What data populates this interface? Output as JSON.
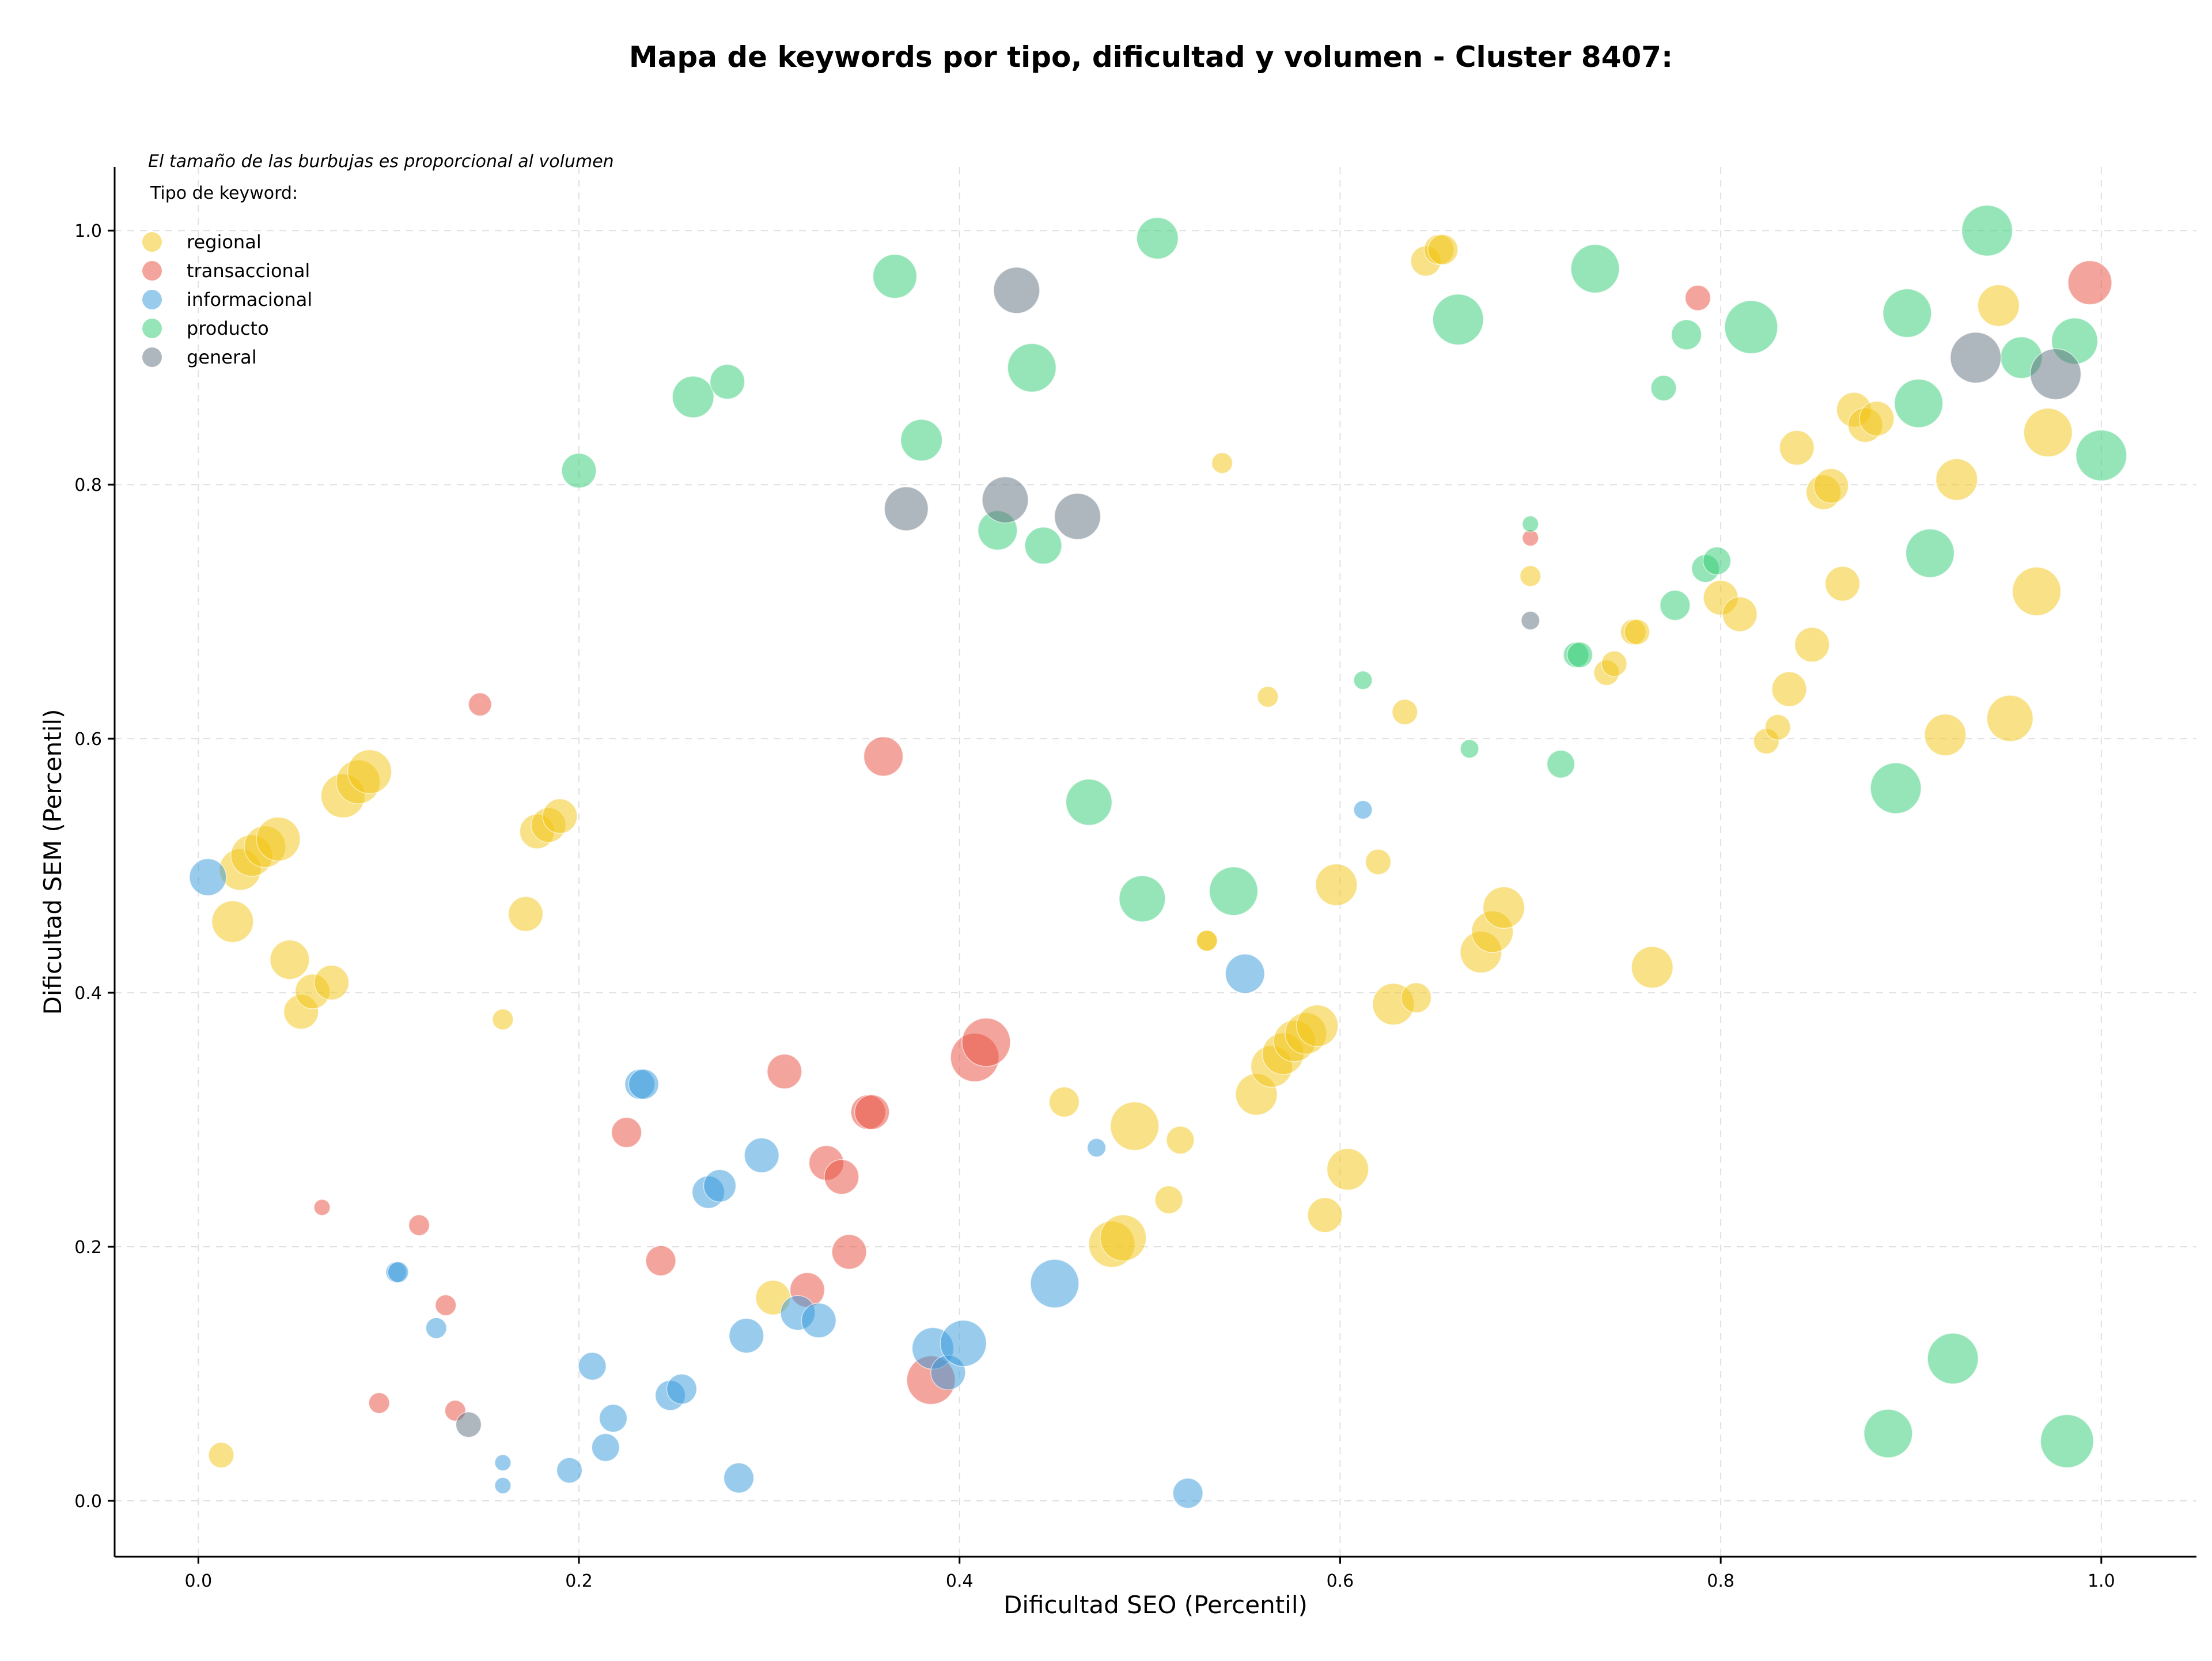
{
  "chart_data": {
    "type": "scatter",
    "title": "Mapa de keywords por tipo, dificultad y volumen - Cluster 8407:",
    "xlabel": "Dificultad SEO (Percentil)",
    "ylabel": "Dificultad SEM (Percentil)",
    "note": "El tamaño de las burbujas es proporcional al volumen",
    "legend_title": "Tipo de keyword:",
    "legend_position": "top-left",
    "grid": true,
    "xlim": [
      -0.044,
      1.05
    ],
    "ylim": [
      -0.044,
      1.05
    ],
    "xticks": [
      "0.0",
      "0.2",
      "0.4",
      "0.6",
      "0.8",
      "1.0"
    ],
    "yticks": [
      "0.0",
      "0.2",
      "0.4",
      "0.6",
      "0.8",
      "1.0"
    ],
    "series": [
      {
        "name": "regional",
        "color": "#f1c40f",
        "points": [
          [
            0.012,
            0.036,
            22
          ],
          [
            0.018,
            0.456,
            36
          ],
          [
            0.022,
            0.497,
            36
          ],
          [
            0.028,
            0.508,
            36
          ],
          [
            0.035,
            0.515,
            36
          ],
          [
            0.042,
            0.521,
            38
          ],
          [
            0.048,
            0.426,
            34
          ],
          [
            0.054,
            0.385,
            30
          ],
          [
            0.06,
            0.401,
            30
          ],
          [
            0.07,
            0.408,
            30
          ],
          [
            0.076,
            0.555,
            38
          ],
          [
            0.084,
            0.566,
            38
          ],
          [
            0.09,
            0.574,
            38
          ],
          [
            0.16,
            0.379,
            18
          ],
          [
            0.172,
            0.462,
            30
          ],
          [
            0.178,
            0.527,
            30
          ],
          [
            0.184,
            0.532,
            30
          ],
          [
            0.19,
            0.539,
            30
          ],
          [
            0.302,
            0.16,
            30
          ],
          [
            0.455,
            0.314,
            26
          ],
          [
            0.48,
            0.202,
            40
          ],
          [
            0.486,
            0.207,
            40
          ],
          [
            0.492,
            0.295,
            42
          ],
          [
            0.51,
            0.237,
            24
          ],
          [
            0.516,
            0.284,
            24
          ],
          [
            0.53,
            0.441,
            18
          ],
          [
            0.53,
            0.441,
            18
          ],
          [
            0.538,
            0.817,
            18
          ],
          [
            0.556,
            0.32,
            36
          ],
          [
            0.564,
            0.342,
            36
          ],
          [
            0.57,
            0.352,
            36
          ],
          [
            0.576,
            0.362,
            36
          ],
          [
            0.582,
            0.368,
            36
          ],
          [
            0.588,
            0.374,
            36
          ],
          [
            0.562,
            0.633,
            18
          ],
          [
            0.592,
            0.225,
            30
          ],
          [
            0.598,
            0.485,
            36
          ],
          [
            0.604,
            0.261,
            36
          ],
          [
            0.62,
            0.503,
            22
          ],
          [
            0.628,
            0.391,
            36
          ],
          [
            0.634,
            0.621,
            22
          ],
          [
            0.64,
            0.396,
            26
          ],
          [
            0.645,
            0.976,
            26
          ],
          [
            0.652,
            0.985,
            26
          ],
          [
            0.654,
            0.985,
            26
          ],
          [
            0.674,
            0.432,
            36
          ],
          [
            0.68,
            0.448,
            36
          ],
          [
            0.686,
            0.467,
            36
          ],
          [
            0.7,
            0.728,
            18
          ],
          [
            0.74,
            0.652,
            22
          ],
          [
            0.744,
            0.659,
            22
          ],
          [
            0.754,
            0.684,
            22
          ],
          [
            0.756,
            0.684,
            22
          ],
          [
            0.764,
            0.42,
            36
          ],
          [
            0.8,
            0.711,
            30
          ],
          [
            0.81,
            0.698,
            30
          ],
          [
            0.824,
            0.598,
            22
          ],
          [
            0.83,
            0.609,
            22
          ],
          [
            0.836,
            0.639,
            30
          ],
          [
            0.84,
            0.829,
            30
          ],
          [
            0.848,
            0.674,
            30
          ],
          [
            0.854,
            0.794,
            30
          ],
          [
            0.858,
            0.799,
            30
          ],
          [
            0.864,
            0.722,
            30
          ],
          [
            0.87,
            0.859,
            30
          ],
          [
            0.876,
            0.847,
            30
          ],
          [
            0.882,
            0.852,
            30
          ],
          [
            0.918,
            0.603,
            36
          ],
          [
            0.924,
            0.804,
            36
          ],
          [
            0.946,
            0.941,
            36
          ],
          [
            0.952,
            0.616,
            40
          ],
          [
            0.966,
            0.716,
            42
          ],
          [
            0.972,
            0.841,
            42
          ]
        ]
      },
      {
        "name": "transaccional",
        "color": "#e74c3c",
        "points": [
          [
            0.065,
            0.231,
            14
          ],
          [
            0.095,
            0.077,
            18
          ],
          [
            0.116,
            0.217,
            18
          ],
          [
            0.13,
            0.154,
            18
          ],
          [
            0.135,
            0.071,
            18
          ],
          [
            0.148,
            0.627,
            20
          ],
          [
            0.225,
            0.29,
            26
          ],
          [
            0.243,
            0.189,
            26
          ],
          [
            0.308,
            0.338,
            30
          ],
          [
            0.32,
            0.166,
            30
          ],
          [
            0.33,
            0.266,
            30
          ],
          [
            0.338,
            0.255,
            30
          ],
          [
            0.342,
            0.196,
            30
          ],
          [
            0.352,
            0.306,
            30
          ],
          [
            0.354,
            0.306,
            30
          ],
          [
            0.36,
            0.586,
            34
          ],
          [
            0.385,
            0.095,
            42
          ],
          [
            0.408,
            0.349,
            42
          ],
          [
            0.414,
            0.361,
            42
          ],
          [
            0.7,
            0.758,
            14
          ],
          [
            0.788,
            0.947,
            22
          ],
          [
            0.994,
            0.959,
            38
          ]
        ]
      },
      {
        "name": "informacional",
        "color": "#3498db",
        "points": [
          [
            0.005,
            0.491,
            32
          ],
          [
            0.104,
            0.18,
            18
          ],
          [
            0.105,
            0.18,
            18
          ],
          [
            0.125,
            0.136,
            18
          ],
          [
            0.16,
            0.012,
            14
          ],
          [
            0.16,
            0.03,
            14
          ],
          [
            0.195,
            0.024,
            22
          ],
          [
            0.207,
            0.106,
            24
          ],
          [
            0.214,
            0.042,
            24
          ],
          [
            0.218,
            0.065,
            24
          ],
          [
            0.232,
            0.328,
            26
          ],
          [
            0.234,
            0.328,
            26
          ],
          [
            0.248,
            0.083,
            26
          ],
          [
            0.254,
            0.088,
            26
          ],
          [
            0.268,
            0.243,
            28
          ],
          [
            0.274,
            0.248,
            28
          ],
          [
            0.288,
            0.13,
            30
          ],
          [
            0.296,
            0.272,
            30
          ],
          [
            0.315,
            0.148,
            30
          ],
          [
            0.326,
            0.142,
            30
          ],
          [
            0.386,
            0.12,
            36
          ],
          [
            0.394,
            0.101,
            30
          ],
          [
            0.402,
            0.124,
            40
          ],
          [
            0.284,
            0.018,
            26
          ],
          [
            0.45,
            0.171,
            42
          ],
          [
            0.472,
            0.278,
            16
          ],
          [
            0.52,
            0.006,
            26
          ],
          [
            0.55,
            0.415,
            34
          ],
          [
            0.612,
            0.544,
            16
          ]
        ]
      },
      {
        "name": "producto",
        "color": "#2ecc71",
        "points": [
          [
            0.2,
            0.811,
            30
          ],
          [
            0.26,
            0.869,
            36
          ],
          [
            0.278,
            0.881,
            30
          ],
          [
            0.366,
            0.964,
            38
          ],
          [
            0.38,
            0.835,
            36
          ],
          [
            0.42,
            0.764,
            34
          ],
          [
            0.438,
            0.892,
            42
          ],
          [
            0.444,
            0.752,
            32
          ],
          [
            0.468,
            0.55,
            40
          ],
          [
            0.496,
            0.474,
            40
          ],
          [
            0.504,
            0.994,
            36
          ],
          [
            0.544,
            0.48,
            42
          ],
          [
            0.612,
            0.646,
            16
          ],
          [
            0.662,
            0.93,
            44
          ],
          [
            0.668,
            0.592,
            16
          ],
          [
            0.7,
            0.769,
            14
          ],
          [
            0.716,
            0.58,
            24
          ],
          [
            0.724,
            0.666,
            22
          ],
          [
            0.726,
            0.666,
            22
          ],
          [
            0.734,
            0.97,
            42
          ],
          [
            0.77,
            0.876,
            22
          ],
          [
            0.776,
            0.705,
            26
          ],
          [
            0.782,
            0.918,
            26
          ],
          [
            0.792,
            0.734,
            24
          ],
          [
            0.798,
            0.74,
            24
          ],
          [
            0.816,
            0.924,
            46
          ],
          [
            0.892,
            0.561,
            44
          ],
          [
            0.898,
            0.935,
            42
          ],
          [
            0.904,
            0.864,
            42
          ],
          [
            0.91,
            0.746,
            42
          ],
          [
            0.94,
            1.0,
            44
          ],
          [
            0.958,
            0.9,
            36
          ],
          [
            0.986,
            0.913,
            40
          ],
          [
            1.0,
            0.823,
            44
          ],
          [
            0.888,
            0.053,
            42
          ],
          [
            0.922,
            0.112,
            44
          ],
          [
            0.982,
            0.047,
            46
          ]
        ]
      },
      {
        "name": "general",
        "color": "#5d6d7e",
        "points": [
          [
            0.142,
            0.06,
            22
          ],
          [
            0.372,
            0.781,
            38
          ],
          [
            0.43,
            0.953,
            40
          ],
          [
            0.424,
            0.788,
            40
          ],
          [
            0.462,
            0.775,
            40
          ],
          [
            0.7,
            0.693,
            16
          ],
          [
            0.934,
            0.9,
            44
          ],
          [
            0.976,
            0.887,
            44
          ]
        ]
      }
    ]
  }
}
